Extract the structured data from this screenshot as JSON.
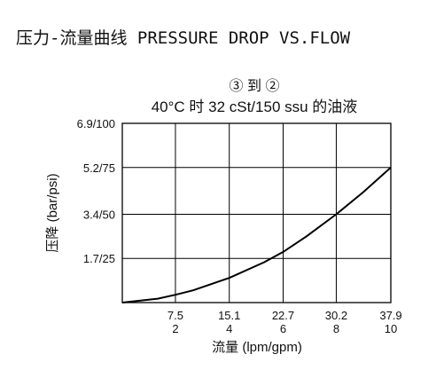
{
  "heading": "压力-流量曲线 PRESSURE DROP VS.FLOW",
  "chart_data": {
    "type": "line",
    "title": "③ 到 ②",
    "subtitle": "40°C 时 32 cSt/150 ssu 的油液",
    "xlabel": "流量 (lpm/gpm)",
    "ylabel": "压降 (bar/psi)",
    "x_ticks": [
      {
        "value": 7.5,
        "lpm": "7.5",
        "gpm": "2"
      },
      {
        "value": 15.1,
        "lpm": "15.1",
        "gpm": "4"
      },
      {
        "value": 22.7,
        "lpm": "22.7",
        "gpm": "6"
      },
      {
        "value": 30.2,
        "lpm": "30.2",
        "gpm": "8"
      },
      {
        "value": 37.9,
        "lpm": "37.9",
        "gpm": "10"
      }
    ],
    "y_ticks": [
      {
        "value": 1.7,
        "label": "1.7/25"
      },
      {
        "value": 3.4,
        "label": "3.4/50"
      },
      {
        "value": 5.2,
        "label": "5.2/75"
      },
      {
        "value": 6.9,
        "label": "6.9/100"
      }
    ],
    "xlim": [
      0,
      37.9
    ],
    "ylim": [
      0,
      6.9
    ],
    "grid": true,
    "series": [
      {
        "x": [
          0,
          5,
          7.5,
          10,
          15.1,
          20,
          22.7,
          26,
          30.2,
          34,
          37.9
        ],
        "y": [
          0,
          0.15,
          0.3,
          0.47,
          0.95,
          1.55,
          1.95,
          2.55,
          3.4,
          4.25,
          5.2
        ]
      }
    ],
    "line_color": "#000000"
  }
}
